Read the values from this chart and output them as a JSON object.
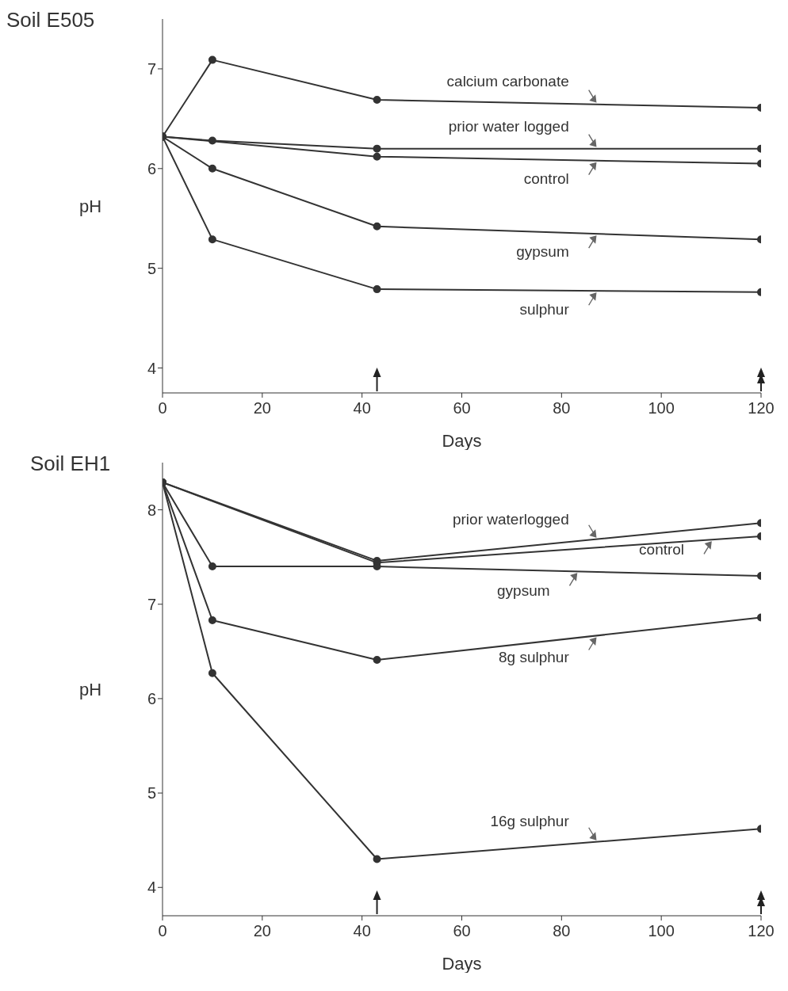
{
  "chart_data": [
    {
      "type": "line",
      "title": "Soil E505",
      "xlabel": "Days",
      "ylabel": "pH",
      "x": [
        0,
        10,
        43,
        120
      ],
      "xlim": [
        0,
        120
      ],
      "xticks": [
        0,
        20,
        40,
        60,
        80,
        100,
        120
      ],
      "ylim": [
        3.75,
        7.5
      ],
      "yticks": [
        4,
        5,
        6,
        7
      ],
      "marker": "circle",
      "legend": false,
      "grid": false,
      "series": [
        {
          "name": "calcium carbonate",
          "color": "#333333",
          "values": [
            6.32,
            7.09,
            6.69,
            6.61
          ]
        },
        {
          "name": "prior water logged",
          "color": "#333333",
          "values": [
            6.32,
            6.28,
            6.2,
            6.2
          ]
        },
        {
          "name": "control",
          "color": "#333333",
          "values": [
            6.32,
            null,
            6.12,
            6.05
          ]
        },
        {
          "name": "gypsum",
          "color": "#333333",
          "values": [
            6.32,
            6.0,
            5.42,
            5.29
          ]
        },
        {
          "name": "sulphur",
          "color": "#333333",
          "values": [
            6.32,
            5.29,
            4.79,
            4.76
          ]
        }
      ]
    },
    {
      "type": "line",
      "title": "Soil EH1",
      "xlabel": "Days",
      "ylabel": "pH",
      "x": [
        0,
        10,
        43,
        120
      ],
      "xlim": [
        0,
        120
      ],
      "xticks": [
        0,
        20,
        40,
        60,
        80,
        100,
        120
      ],
      "ylim": [
        3.7,
        8.5
      ],
      "yticks": [
        4,
        5,
        6,
        7,
        8
      ],
      "marker": "circle",
      "legend": false,
      "grid": false,
      "series": [
        {
          "name": "prior waterlogged",
          "color": "#333333",
          "values": [
            8.29,
            null,
            7.46,
            7.86
          ]
        },
        {
          "name": "control",
          "color": "#333333",
          "values": [
            8.29,
            null,
            7.44,
            7.72
          ]
        },
        {
          "name": "gypsum",
          "color": "#333333",
          "values": [
            8.29,
            7.4,
            7.4,
            7.3
          ]
        },
        {
          "name": "8g sulphur",
          "color": "#333333",
          "values": [
            8.29,
            6.83,
            6.41,
            6.86
          ]
        },
        {
          "name": "16g sulphur",
          "color": "#333333",
          "values": [
            8.29,
            6.27,
            4.3,
            4.62
          ]
        }
      ]
    }
  ]
}
